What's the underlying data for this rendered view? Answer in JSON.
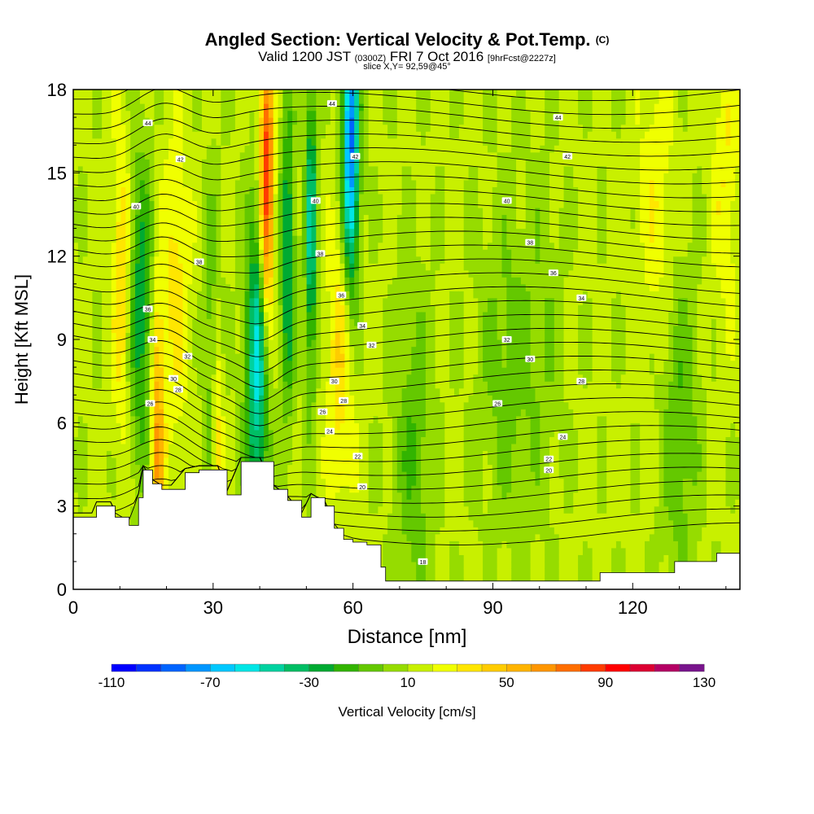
{
  "header": {
    "title": "Angled Section: Vertical Velocity & Pot.Temp.",
    "title_mark": "(C)",
    "valid_main": "Valid 1200 JST",
    "valid_utc": "(0300Z)",
    "valid_date": "FRI 7 Oct 2016",
    "forecast": "[9hrFcst@2227z]",
    "slice": "slice X,Y= 92,59@45°"
  },
  "colorbar": {
    "label": "Vertical Velocity [cm/s]",
    "tick_labels": [
      "-110",
      "-70",
      "-30",
      "10",
      "50",
      "90",
      "130"
    ],
    "tick_values": [
      -110,
      -70,
      -30,
      10,
      50,
      90,
      130
    ],
    "min": -110,
    "max": 130,
    "step": 10,
    "colors": [
      "#0000ff",
      "#0032ff",
      "#0064ff",
      "#0096ff",
      "#00c8ff",
      "#00e6e6",
      "#00d2a0",
      "#00be64",
      "#00aa32",
      "#32b400",
      "#64c800",
      "#96dc00",
      "#c8f000",
      "#f0ff00",
      "#ffe600",
      "#ffcc00",
      "#ffb400",
      "#ff9600",
      "#ff6e00",
      "#ff3c00",
      "#ff0000",
      "#dc0032",
      "#b40064",
      "#78148c"
    ]
  },
  "chart_data": {
    "type": "heatmap",
    "xlabel": "Distance [nm]",
    "ylabel": "Height [Kft MSL]",
    "xlim": [
      0,
      143
    ],
    "ylim": [
      0,
      18
    ],
    "xticks": [
      0,
      30,
      60,
      90,
      120
    ],
    "yticks": [
      0,
      3,
      6,
      9,
      12,
      15,
      18
    ],
    "fill_variable": "Vertical Velocity [cm/s]",
    "contour_variable": "Potential temperature",
    "background_velocity": 12,
    "features": [
      {
        "x": 10.5,
        "y": 11.0,
        "velocity": 45,
        "width": 2.0
      },
      {
        "x": 14.5,
        "y": 10.0,
        "velocity": -28,
        "width": 3.0
      },
      {
        "x": 18.0,
        "y": 5.5,
        "velocity": 65,
        "width": 1.5
      },
      {
        "x": 22.0,
        "y": 11.0,
        "velocity": 35,
        "width": 3.0
      },
      {
        "x": 30.0,
        "y": 9.0,
        "velocity": -10,
        "width": 2.0
      },
      {
        "x": 31.0,
        "y": 5.0,
        "velocity": 45,
        "width": 1.2
      },
      {
        "x": 39.5,
        "y": 8.0,
        "velocity": -55,
        "width": 2.5
      },
      {
        "x": 41.5,
        "y": 14.5,
        "velocity": 95,
        "width": 1.5
      },
      {
        "x": 46.0,
        "y": 12.0,
        "velocity": -35,
        "width": 1.5
      },
      {
        "x": 51.0,
        "y": 13.0,
        "velocity": -45,
        "width": 1.2
      },
      {
        "x": 57.5,
        "y": 8.5,
        "velocity": 40,
        "width": 3.0
      },
      {
        "x": 59.5,
        "y": 16.0,
        "velocity": -85,
        "width": 1.8
      },
      {
        "x": 73.0,
        "y": 5.0,
        "velocity": -10,
        "width": 4.0
      },
      {
        "x": 93.0,
        "y": 8.0,
        "velocity": -5,
        "width": 6.0
      },
      {
        "x": 101.0,
        "y": 9.0,
        "velocity": 2,
        "width": 4.0
      },
      {
        "x": 125.0,
        "y": 14.0,
        "velocity": 28,
        "width": 4.0
      },
      {
        "x": 130.0,
        "y": 6.0,
        "velocity": -10,
        "width": 4.0
      },
      {
        "x": 140.0,
        "y": 15.0,
        "velocity": 30,
        "width": 3.0
      }
    ],
    "terrain": [
      {
        "x": 0,
        "h": 2.6
      },
      {
        "x": 4,
        "h": 2.6
      },
      {
        "x": 5,
        "h": 3.0
      },
      {
        "x": 8,
        "h": 3.0
      },
      {
        "x": 9,
        "h": 2.6
      },
      {
        "x": 12,
        "h": 2.3
      },
      {
        "x": 14,
        "h": 3.3
      },
      {
        "x": 15,
        "h": 4.3
      },
      {
        "x": 17,
        "h": 3.8
      },
      {
        "x": 19,
        "h": 3.6
      },
      {
        "x": 21,
        "h": 3.6
      },
      {
        "x": 24,
        "h": 4.2
      },
      {
        "x": 27,
        "h": 4.3
      },
      {
        "x": 31,
        "h": 4.3
      },
      {
        "x": 33,
        "h": 3.4
      },
      {
        "x": 36,
        "h": 4.6
      },
      {
        "x": 40,
        "h": 4.6
      },
      {
        "x": 43,
        "h": 3.6
      },
      {
        "x": 46,
        "h": 3.2
      },
      {
        "x": 49,
        "h": 2.6
      },
      {
        "x": 51,
        "h": 3.3
      },
      {
        "x": 54,
        "h": 3.0
      },
      {
        "x": 56,
        "h": 2.2
      },
      {
        "x": 58,
        "h": 1.8
      },
      {
        "x": 60,
        "h": 1.7
      },
      {
        "x": 63,
        "h": 1.6
      },
      {
        "x": 66,
        "h": 0.8
      },
      {
        "x": 67,
        "h": 0.3
      },
      {
        "x": 73,
        "h": 0.3
      },
      {
        "x": 78,
        "h": 0.3
      },
      {
        "x": 90,
        "h": 0.3
      },
      {
        "x": 110,
        "h": 0.3
      },
      {
        "x": 113,
        "h": 0.6
      },
      {
        "x": 120,
        "h": 0.6
      },
      {
        "x": 129,
        "h": 1.0
      },
      {
        "x": 137,
        "h": 1.0
      },
      {
        "x": 138,
        "h": 1.3
      },
      {
        "x": 143,
        "h": 1.3
      }
    ],
    "contour_labels": [
      {
        "x": 16.0,
        "y": 16.8,
        "text": "44"
      },
      {
        "x": 23.0,
        "y": 15.5,
        "text": "42"
      },
      {
        "x": 13.5,
        "y": 13.8,
        "text": "40"
      },
      {
        "x": 27.0,
        "y": 11.8,
        "text": "38"
      },
      {
        "x": 16.0,
        "y": 10.1,
        "text": "36"
      },
      {
        "x": 17.0,
        "y": 9.0,
        "text": "34"
      },
      {
        "x": 24.5,
        "y": 8.4,
        "text": "32"
      },
      {
        "x": 21.5,
        "y": 7.6,
        "text": "30"
      },
      {
        "x": 22.5,
        "y": 7.2,
        "text": "28"
      },
      {
        "x": 16.5,
        "y": 6.7,
        "text": "26"
      },
      {
        "x": 55.5,
        "y": 17.5,
        "text": "44"
      },
      {
        "x": 60.5,
        "y": 15.6,
        "text": "42"
      },
      {
        "x": 52.0,
        "y": 14.0,
        "text": "40"
      },
      {
        "x": 53.0,
        "y": 12.1,
        "text": "38"
      },
      {
        "x": 57.5,
        "y": 10.6,
        "text": "36"
      },
      {
        "x": 62.0,
        "y": 9.5,
        "text": "34"
      },
      {
        "x": 64.0,
        "y": 8.8,
        "text": "32"
      },
      {
        "x": 56.0,
        "y": 7.5,
        "text": "30"
      },
      {
        "x": 58.0,
        "y": 6.8,
        "text": "28"
      },
      {
        "x": 53.5,
        "y": 6.4,
        "text": "26"
      },
      {
        "x": 55.0,
        "y": 5.7,
        "text": "24"
      },
      {
        "x": 61.0,
        "y": 4.8,
        "text": "22"
      },
      {
        "x": 62.0,
        "y": 3.7,
        "text": "20"
      },
      {
        "x": 75.0,
        "y": 1.0,
        "text": "18"
      },
      {
        "x": 104.0,
        "y": 17.0,
        "text": "44"
      },
      {
        "x": 106.0,
        "y": 15.6,
        "text": "42"
      },
      {
        "x": 93.0,
        "y": 14.0,
        "text": "40"
      },
      {
        "x": 98.0,
        "y": 12.5,
        "text": "38"
      },
      {
        "x": 103.0,
        "y": 11.4,
        "text": "36"
      },
      {
        "x": 109.0,
        "y": 10.5,
        "text": "34"
      },
      {
        "x": 93.0,
        "y": 9.0,
        "text": "32"
      },
      {
        "x": 98.0,
        "y": 8.3,
        "text": "30"
      },
      {
        "x": 109.0,
        "y": 7.5,
        "text": "28"
      },
      {
        "x": 91.0,
        "y": 6.7,
        "text": "26"
      },
      {
        "x": 105.0,
        "y": 5.5,
        "text": "24"
      },
      {
        "x": 102.0,
        "y": 4.7,
        "text": "22"
      },
      {
        "x": 102.0,
        "y": 4.3,
        "text": "20"
      }
    ]
  }
}
